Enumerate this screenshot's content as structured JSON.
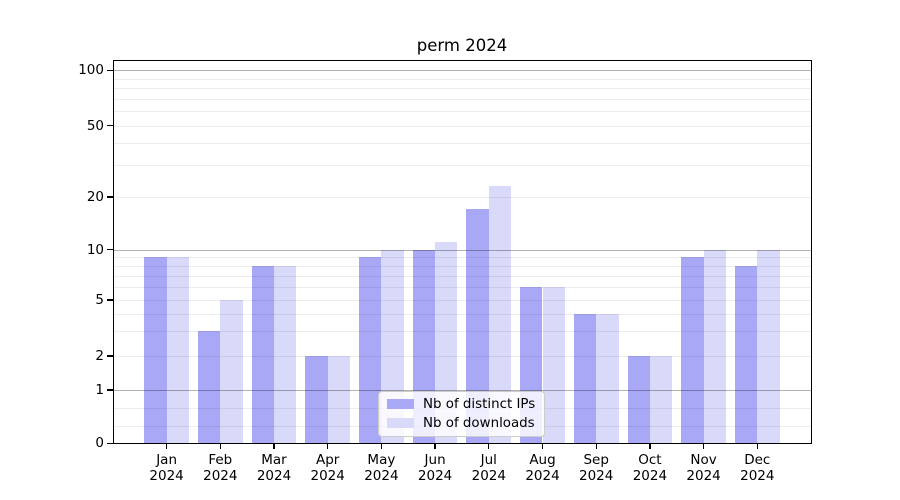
{
  "chart_data": {
    "type": "bar",
    "title": "perm 2024",
    "categories": [
      "Jan",
      "Feb",
      "Mar",
      "Apr",
      "May",
      "Jun",
      "Jul",
      "Aug",
      "Sep",
      "Oct",
      "Nov",
      "Dec"
    ],
    "year": "2024",
    "xlabel": "",
    "ylabel": "",
    "yscale": "symlog",
    "yticks": [
      0,
      1,
      2,
      5,
      10,
      20,
      50,
      100
    ],
    "ylim": [
      0,
      112
    ],
    "grid": true,
    "legend_position": "inside lower center",
    "series": [
      {
        "name": "Nb of distinct IPs",
        "color": "#a8a8f7",
        "values": [
          9,
          3,
          8,
          2,
          9,
          10,
          17,
          6,
          4,
          2,
          9,
          8
        ]
      },
      {
        "name": "Nb of downloads",
        "color": "#d9d9fa",
        "values": [
          9,
          5,
          8,
          2,
          10,
          11,
          23,
          6,
          4,
          2,
          10,
          10
        ]
      }
    ]
  }
}
